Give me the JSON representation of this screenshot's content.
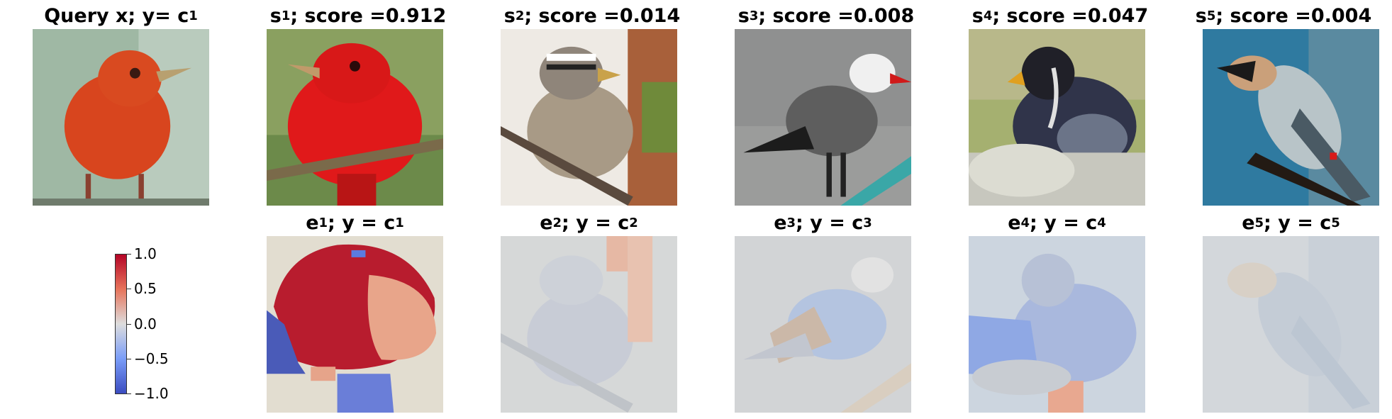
{
  "query": {
    "title_main": "Query x; y",
    "title_eq": " = c",
    "title_sub": "1"
  },
  "scores": [
    {
      "s_sub": "1",
      "score": "0.912"
    },
    {
      "s_sub": "2",
      "score": "0.014"
    },
    {
      "s_sub": "3",
      "score": "0.008"
    },
    {
      "s_sub": "4",
      "score": "0.047"
    },
    {
      "s_sub": "5",
      "score": "0.004"
    }
  ],
  "explanations": [
    {
      "e_sub": "1",
      "c_sub": "1"
    },
    {
      "e_sub": "2",
      "c_sub": "2"
    },
    {
      "e_sub": "3",
      "c_sub": "3"
    },
    {
      "e_sub": "4",
      "c_sub": "4"
    },
    {
      "e_sub": "5",
      "c_sub": "5"
    }
  ],
  "colorbar": {
    "ticks": [
      "1.0",
      "0.5",
      "0.0",
      "−0.5",
      "−1.0"
    ]
  }
}
